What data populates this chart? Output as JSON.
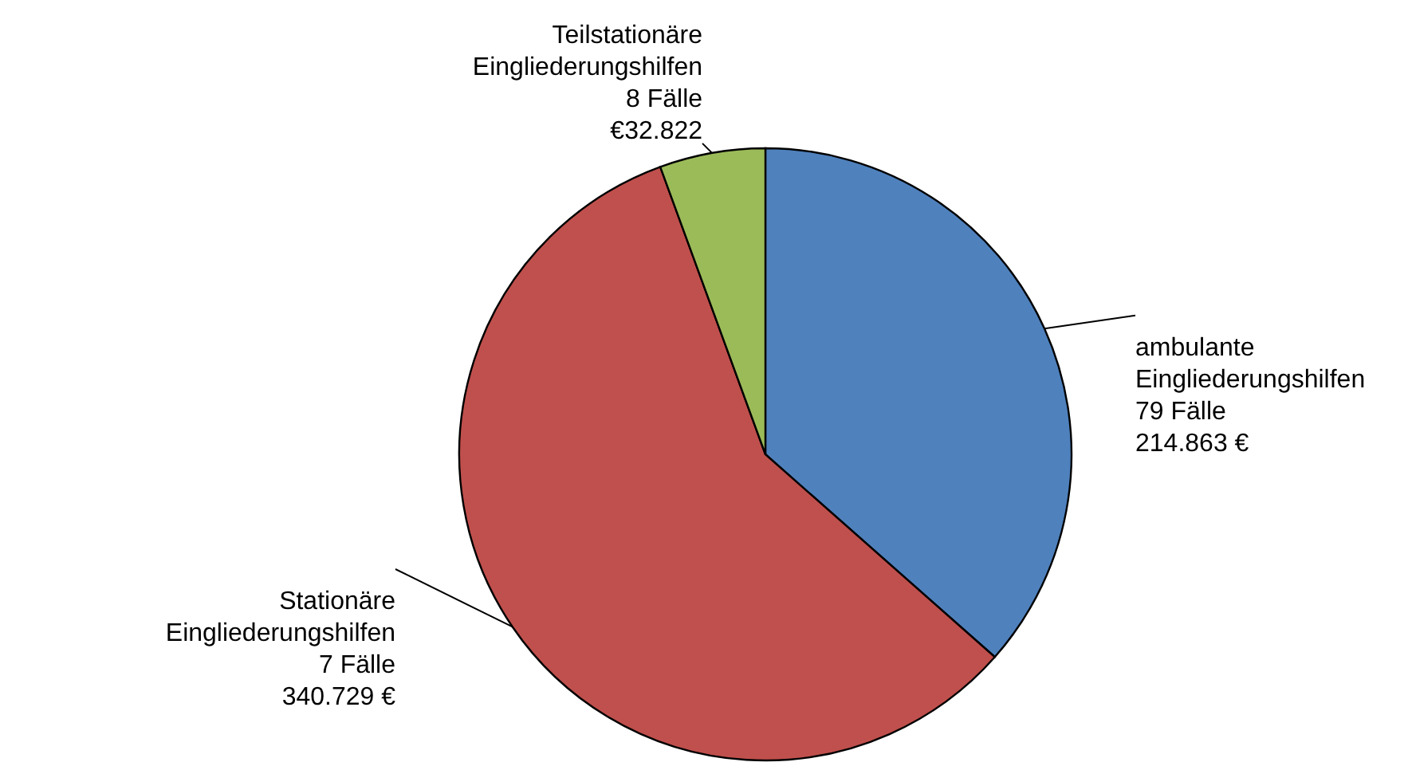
{
  "chart_data": {
    "type": "pie",
    "categories": [
      "ambulante Eingliederungshilfen",
      "Stationäre Eingliederungshilfen",
      "Teilstationäre Eingliederungshilfen"
    ],
    "values": [
      214863,
      340729,
      32822
    ],
    "colors": [
      "#4f81bd",
      "#c0504d",
      "#9bbb59"
    ],
    "value_labels": [
      "214.863 €",
      "340.729 €",
      "€32.822"
    ],
    "annotations": [
      {
        "text": "79 Fälle",
        "x": "ambulante Eingliederungshilfen"
      },
      {
        "text": "7 Fälle",
        "x": "Stationäre Eingliederungshilfen"
      },
      {
        "text": "8 Fälle",
        "x": "Teilstationäre Eingliederungshilfen"
      }
    ]
  }
}
